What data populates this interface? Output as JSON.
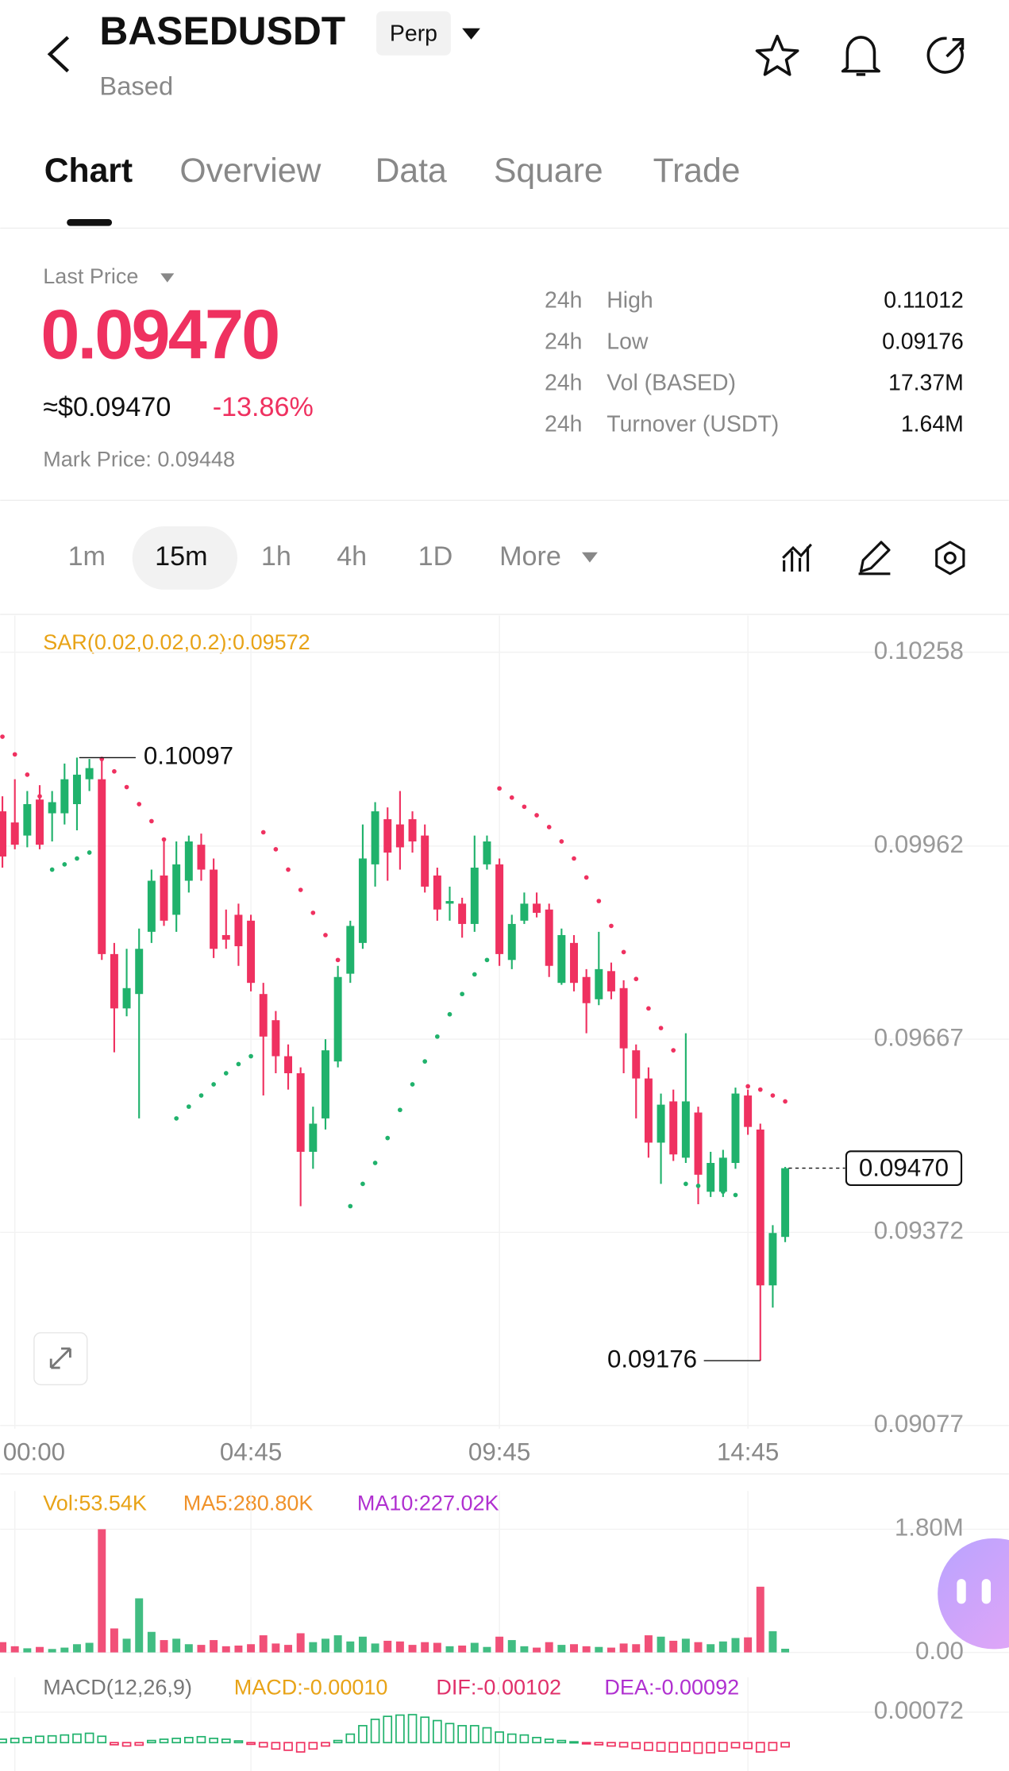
{
  "header": {
    "symbol": "BASEDUSDT",
    "badge": "Perp",
    "subtitle": "Based"
  },
  "tabs": [
    "Chart",
    "Overview",
    "Data",
    "Square",
    "Trade"
  ],
  "price": {
    "label": "Last Price",
    "last": "0.09470",
    "usd": "≈$0.09470",
    "change": "-13.86%",
    "mark": "Mark Price: 0.09448"
  },
  "stats": [
    [
      "24h",
      "High",
      "0.11012"
    ],
    [
      "24h",
      "Low",
      "0.09176"
    ],
    [
      "24h",
      "Vol (BASED)",
      "17.37M"
    ],
    [
      "24h",
      "Turnover (USDT)",
      "1.64M"
    ]
  ],
  "intervals": [
    "1m",
    "15m",
    "1h",
    "4h",
    "1D",
    "More"
  ],
  "chart_data": [
    {
      "type": "candlestick",
      "indicator": "SAR(0.02,0.02,0.2):0.09572",
      "up_color": "#20b26c",
      "down_color": "#ef3160",
      "categories": [
        null,
        "00:00",
        null,
        null,
        null,
        null,
        null,
        null,
        null,
        null,
        null,
        null,
        null,
        null,
        null,
        null,
        null,
        null,
        null,
        null,
        "04:45",
        null,
        null,
        null,
        null,
        null,
        null,
        null,
        null,
        null,
        null,
        null,
        null,
        null,
        null,
        null,
        null,
        null,
        null,
        null,
        "09:45",
        null,
        null,
        null,
        null,
        null,
        null,
        null,
        null,
        null,
        null,
        null,
        null,
        null,
        null,
        null,
        null,
        null,
        null,
        null,
        "14:45",
        null,
        null,
        null
      ],
      "open": [
        0.10015,
        0.09998,
        0.09978,
        0.10033,
        0.10012,
        0.10012,
        0.10026,
        0.10064,
        0.10064,
        0.09797,
        0.09714,
        0.09736,
        0.09831,
        0.09917,
        0.09857,
        0.09909,
        0.09964,
        0.09926,
        0.09826,
        0.09857,
        0.09848,
        0.09736,
        0.09696,
        0.09641,
        0.09615,
        0.09495,
        0.09546,
        0.09633,
        0.09767,
        0.09814,
        0.09934,
        0.10003,
        0.09995,
        0.10003,
        0.09978,
        0.09917,
        0.09874,
        0.09874,
        0.09843,
        0.09934,
        0.09934,
        0.09788,
        0.09848,
        0.09874,
        0.09865,
        0.09753,
        0.09814,
        0.09762,
        0.09728,
        0.09771,
        0.09745,
        0.0965,
        0.09607,
        0.09509,
        0.09572,
        0.09486,
        0.09555,
        0.09434,
        0.09434,
        0.09478,
        0.09581,
        0.09529,
        0.09291,
        0.09365
      ],
      "high": [
        0.10038,
        0.10064,
        0.10046,
        0.10055,
        0.10046,
        0.10088,
        0.10097,
        0.10095,
        0.10095,
        0.09814,
        0.09805,
        0.09836,
        0.09926,
        0.09969,
        0.09969,
        0.09978,
        0.09981,
        0.09943,
        0.09865,
        0.09874,
        0.09857,
        0.09753,
        0.0971,
        0.09659,
        0.09624,
        0.09564,
        0.09667,
        0.09779,
        0.09848,
        0.09995,
        0.10029,
        0.10021,
        0.10046,
        0.10015,
        0.09995,
        0.09929,
        0.099,
        0.09883,
        0.09978,
        0.09978,
        0.09943,
        0.09857,
        0.09891,
        0.09891,
        0.09874,
        0.09836,
        0.09826,
        0.09774,
        0.09831,
        0.09784,
        0.09757,
        0.09659,
        0.09624,
        0.09584,
        0.0959,
        0.09676,
        0.09564,
        0.09495,
        0.09498,
        0.09593,
        0.0959,
        0.09538,
        0.09383,
        0.09472
      ],
      "low": [
        0.09929,
        0.09957,
        0.0996,
        0.09957,
        0.09969,
        0.09995,
        0.09986,
        0.10046,
        0.09788,
        0.09647,
        0.09702,
        0.09546,
        0.09814,
        0.0984,
        0.09831,
        0.09891,
        0.09909,
        0.09791,
        0.09805,
        0.09779,
        0.0974,
        0.09581,
        0.09615,
        0.0959,
        0.09412,
        0.09469,
        0.09529,
        0.09624,
        0.09753,
        0.09805,
        0.099,
        0.09909,
        0.09926,
        0.09952,
        0.09891,
        0.09848,
        0.09848,
        0.09822,
        0.09831,
        0.09926,
        0.09779,
        0.09774,
        0.09843,
        0.09853,
        0.09762,
        0.0975,
        0.0974,
        0.09676,
        0.09719,
        0.09728,
        0.09615,
        0.09546,
        0.09486,
        0.09446,
        0.09481,
        0.09478,
        0.09415,
        0.09426,
        0.09426,
        0.09469,
        0.09521,
        0.09176,
        0.09257,
        0.09357
      ],
      "close": [
        0.09946,
        0.09964,
        0.10026,
        0.09964,
        0.10029,
        0.10064,
        0.10071,
        0.10081,
        0.09797,
        0.09714,
        0.09745,
        0.09805,
        0.09909,
        0.09848,
        0.09934,
        0.09969,
        0.09926,
        0.09805,
        0.09819,
        0.09809,
        0.09753,
        0.09671,
        0.09641,
        0.09615,
        0.09495,
        0.09538,
        0.0965,
        0.09762,
        0.0984,
        0.09943,
        0.10015,
        0.09952,
        0.0996,
        0.09969,
        0.099,
        0.09865,
        0.09878,
        0.09843,
        0.09929,
        0.09969,
        0.09797,
        0.09843,
        0.09874,
        0.0986,
        0.09779,
        0.09826,
        0.09753,
        0.09722,
        0.09774,
        0.0974,
        0.09653,
        0.09607,
        0.09509,
        0.09567,
        0.09491,
        0.09572,
        0.0946,
        0.09478,
        0.09486,
        0.09584,
        0.09533,
        0.09291,
        0.09371,
        0.0947
      ],
      "sar": [
        0.10129,
        0.10102,
        0.10071,
        0.10038,
        0.09926,
        0.09934,
        0.09943,
        0.09952,
        0.10095,
        0.10076,
        0.10052,
        0.10026,
        0.1,
        0.09972,
        0.09546,
        0.09564,
        0.09581,
        0.09598,
        0.09615,
        0.09629,
        0.09641,
        0.09983,
        0.09957,
        0.09926,
        0.09895,
        0.0986,
        0.09826,
        0.09788,
        0.09412,
        0.09446,
        0.09478,
        0.09516,
        0.09559,
        0.09598,
        0.09633,
        0.09671,
        0.09705,
        0.09736,
        0.09766,
        0.09788,
        0.1005,
        0.10036,
        0.10022,
        0.10009,
        0.09991,
        0.09969,
        0.09943,
        0.09914,
        0.09878,
        0.0984,
        0.098,
        0.09759,
        0.09714,
        0.09684,
        0.0965,
        0.09446,
        0.09443,
        0.0944,
        0.09434,
        0.09429,
        0.09595,
        0.0959,
        0.09581,
        0.09572
      ],
      "ylim": [
        0.09072,
        0.10314
      ],
      "yticks": [
        0.10258,
        0.09962,
        0.09667,
        0.09372,
        0.09077
      ],
      "grid": true,
      "high_marker": 0.10097,
      "low_marker": 0.09176,
      "last_price": {
        "value": 0.0947,
        "label": "0.09470"
      }
    },
    {
      "type": "bar",
      "legend": [
        "Vol:53.54K",
        "MA5:280.80K",
        "MA10:227.02K"
      ],
      "legend_colors": [
        "#e8a317",
        "#f0922a",
        "#b030d0"
      ],
      "values": [
        150000,
        90000,
        60000,
        80000,
        50000,
        70000,
        120000,
        140000,
        1800000,
        350000,
        200000,
        790000,
        300000,
        180000,
        200000,
        120000,
        110000,
        180000,
        90000,
        100000,
        120000,
        250000,
        130000,
        110000,
        280000,
        150000,
        200000,
        250000,
        160000,
        230000,
        130000,
        170000,
        160000,
        110000,
        150000,
        140000,
        90000,
        100000,
        140000,
        80000,
        230000,
        180000,
        90000,
        70000,
        150000,
        110000,
        120000,
        90000,
        80000,
        70000,
        130000,
        120000,
        250000,
        230000,
        170000,
        200000,
        150000,
        120000,
        160000,
        210000,
        220000,
        960000,
        310000,
        53540
      ],
      "ylim": [
        0,
        2030000
      ],
      "yticks": [
        {
          "value": 1800000,
          "label": "1.80M"
        },
        {
          "value": 0,
          "label": "0.00"
        }
      ]
    },
    {
      "type": "histogram",
      "legend": [
        "MACD(12,26,9)",
        "MACD:-0.00010",
        "DIF:-0.00102",
        "DEA:-0.00092"
      ],
      "legend_colors": [
        "#777777",
        "#e8a317",
        "#e0306a",
        "#b030d0"
      ],
      "values": [
        8e-05,
        0.0001,
        0.00012,
        0.00015,
        0.00016,
        0.00018,
        0.0002,
        0.00022,
        0.00015,
        -5e-05,
        -8e-05,
        -6e-05,
        5e-05,
        8e-05,
        0.0001,
        0.00012,
        0.00014,
        0.0001,
        8e-05,
        4e-05,
        -4e-05,
        -0.0001,
        -0.00015,
        -0.00018,
        -0.00022,
        -0.00015,
        -8e-05,
        5e-05,
        0.0002,
        0.0004,
        0.00055,
        0.00062,
        0.00065,
        0.00066,
        0.0006,
        0.00052,
        0.00045,
        0.0004,
        0.0004,
        0.00035,
        0.00025,
        0.0002,
        0.00018,
        0.00012,
        8e-05,
        5e-05,
        2e-05,
        -3e-05,
        -5e-05,
        -8e-05,
        -0.0001,
        -0.00014,
        -0.00018,
        -0.0002,
        -0.00022,
        -0.0002,
        -0.00025,
        -0.00024,
        -0.0002,
        -0.00012,
        -0.00014,
        -0.00022,
        -0.00018,
        -0.0001
      ],
      "ylim": [
        -0.00067,
        0.00101
      ],
      "yticks": [
        0.00072
      ]
    }
  ]
}
